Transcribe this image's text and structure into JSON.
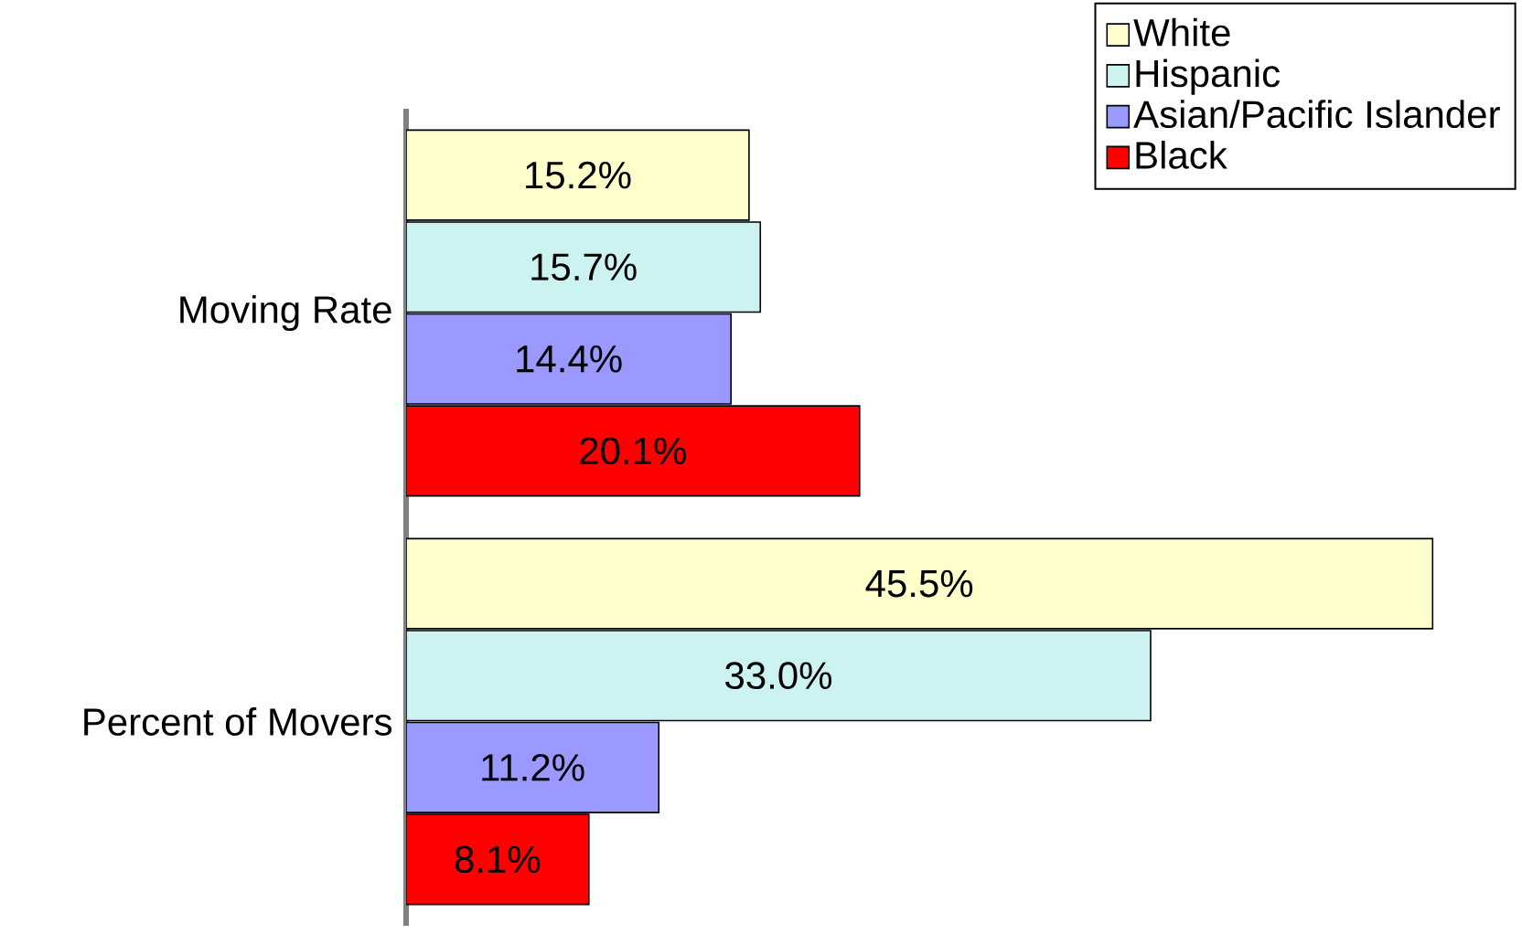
{
  "chart_data": {
    "type": "bar",
    "orientation": "horizontal",
    "legend": "top right",
    "categories": [
      "Moving Rate",
      "Percent of Movers"
    ],
    "series": [
      {
        "name": "White",
        "color": "#ffffcc",
        "values": [
          15.2,
          45.5
        ],
        "value_labels": [
          "15.2%",
          "45.5%"
        ]
      },
      {
        "name": "Hispanic",
        "color": "#ccf2f2",
        "values": [
          15.7,
          33.0
        ],
        "value_labels": [
          "15.7%",
          "33.0%"
        ]
      },
      {
        "name": "Asian/Pacific Islander",
        "color": "#9999ff",
        "values": [
          14.4,
          11.2
        ],
        "value_labels": [
          "14.4%",
          "11.2%"
        ]
      },
      {
        "name": "Black",
        "color": "#ff0000",
        "values": [
          20.1,
          8.1
        ],
        "value_labels": [
          "20.1%",
          "8.1%"
        ]
      }
    ]
  }
}
